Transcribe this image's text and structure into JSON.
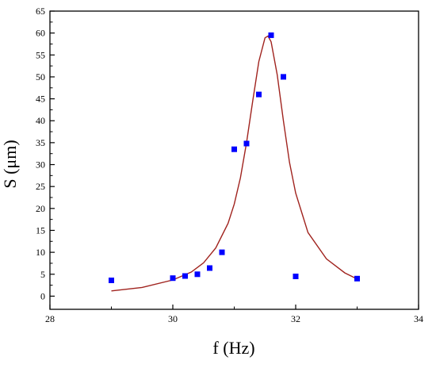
{
  "chart_data": {
    "type": "scatter",
    "title": "",
    "xlabel": "f (Hz)",
    "ylabel": "S (μm)",
    "xlim": [
      28,
      34
    ],
    "ylim": [
      -3,
      65
    ],
    "xticks": [
      28,
      30,
      32,
      34
    ],
    "yticks": [
      0,
      5,
      10,
      15,
      20,
      25,
      30,
      35,
      40,
      45,
      50,
      55,
      60,
      65
    ],
    "x_minor_ticks": [
      29,
      31,
      33
    ],
    "grid": false,
    "legend": "none",
    "series": [
      {
        "kind": "scatter",
        "marker": "square",
        "color": "#0000ff",
        "x": [
          29.0,
          30.0,
          30.2,
          30.4,
          30.6,
          30.8,
          31.0,
          31.2,
          31.4,
          31.6,
          31.8,
          32.0,
          33.0
        ],
        "y": [
          3.6,
          4.1,
          4.6,
          5.0,
          6.4,
          10.0,
          33.5,
          34.8,
          46.0,
          59.5,
          50.0,
          4.5,
          4.0
        ]
      },
      {
        "kind": "line",
        "color": "#a0231e",
        "x": [
          29.0,
          29.5,
          30.0,
          30.3,
          30.5,
          30.7,
          30.9,
          31.0,
          31.1,
          31.2,
          31.3,
          31.4,
          31.5,
          31.55,
          31.6,
          31.7,
          31.8,
          31.9,
          32.0,
          32.2,
          32.5,
          32.8,
          33.0
        ],
        "y": [
          1.2,
          2.0,
          3.7,
          5.5,
          7.6,
          11.0,
          16.6,
          21.0,
          27.0,
          35.0,
          44.5,
          53.5,
          58.9,
          59.3,
          58.0,
          50.5,
          40.0,
          30.5,
          23.5,
          14.5,
          8.5,
          5.3,
          3.9
        ]
      }
    ]
  }
}
